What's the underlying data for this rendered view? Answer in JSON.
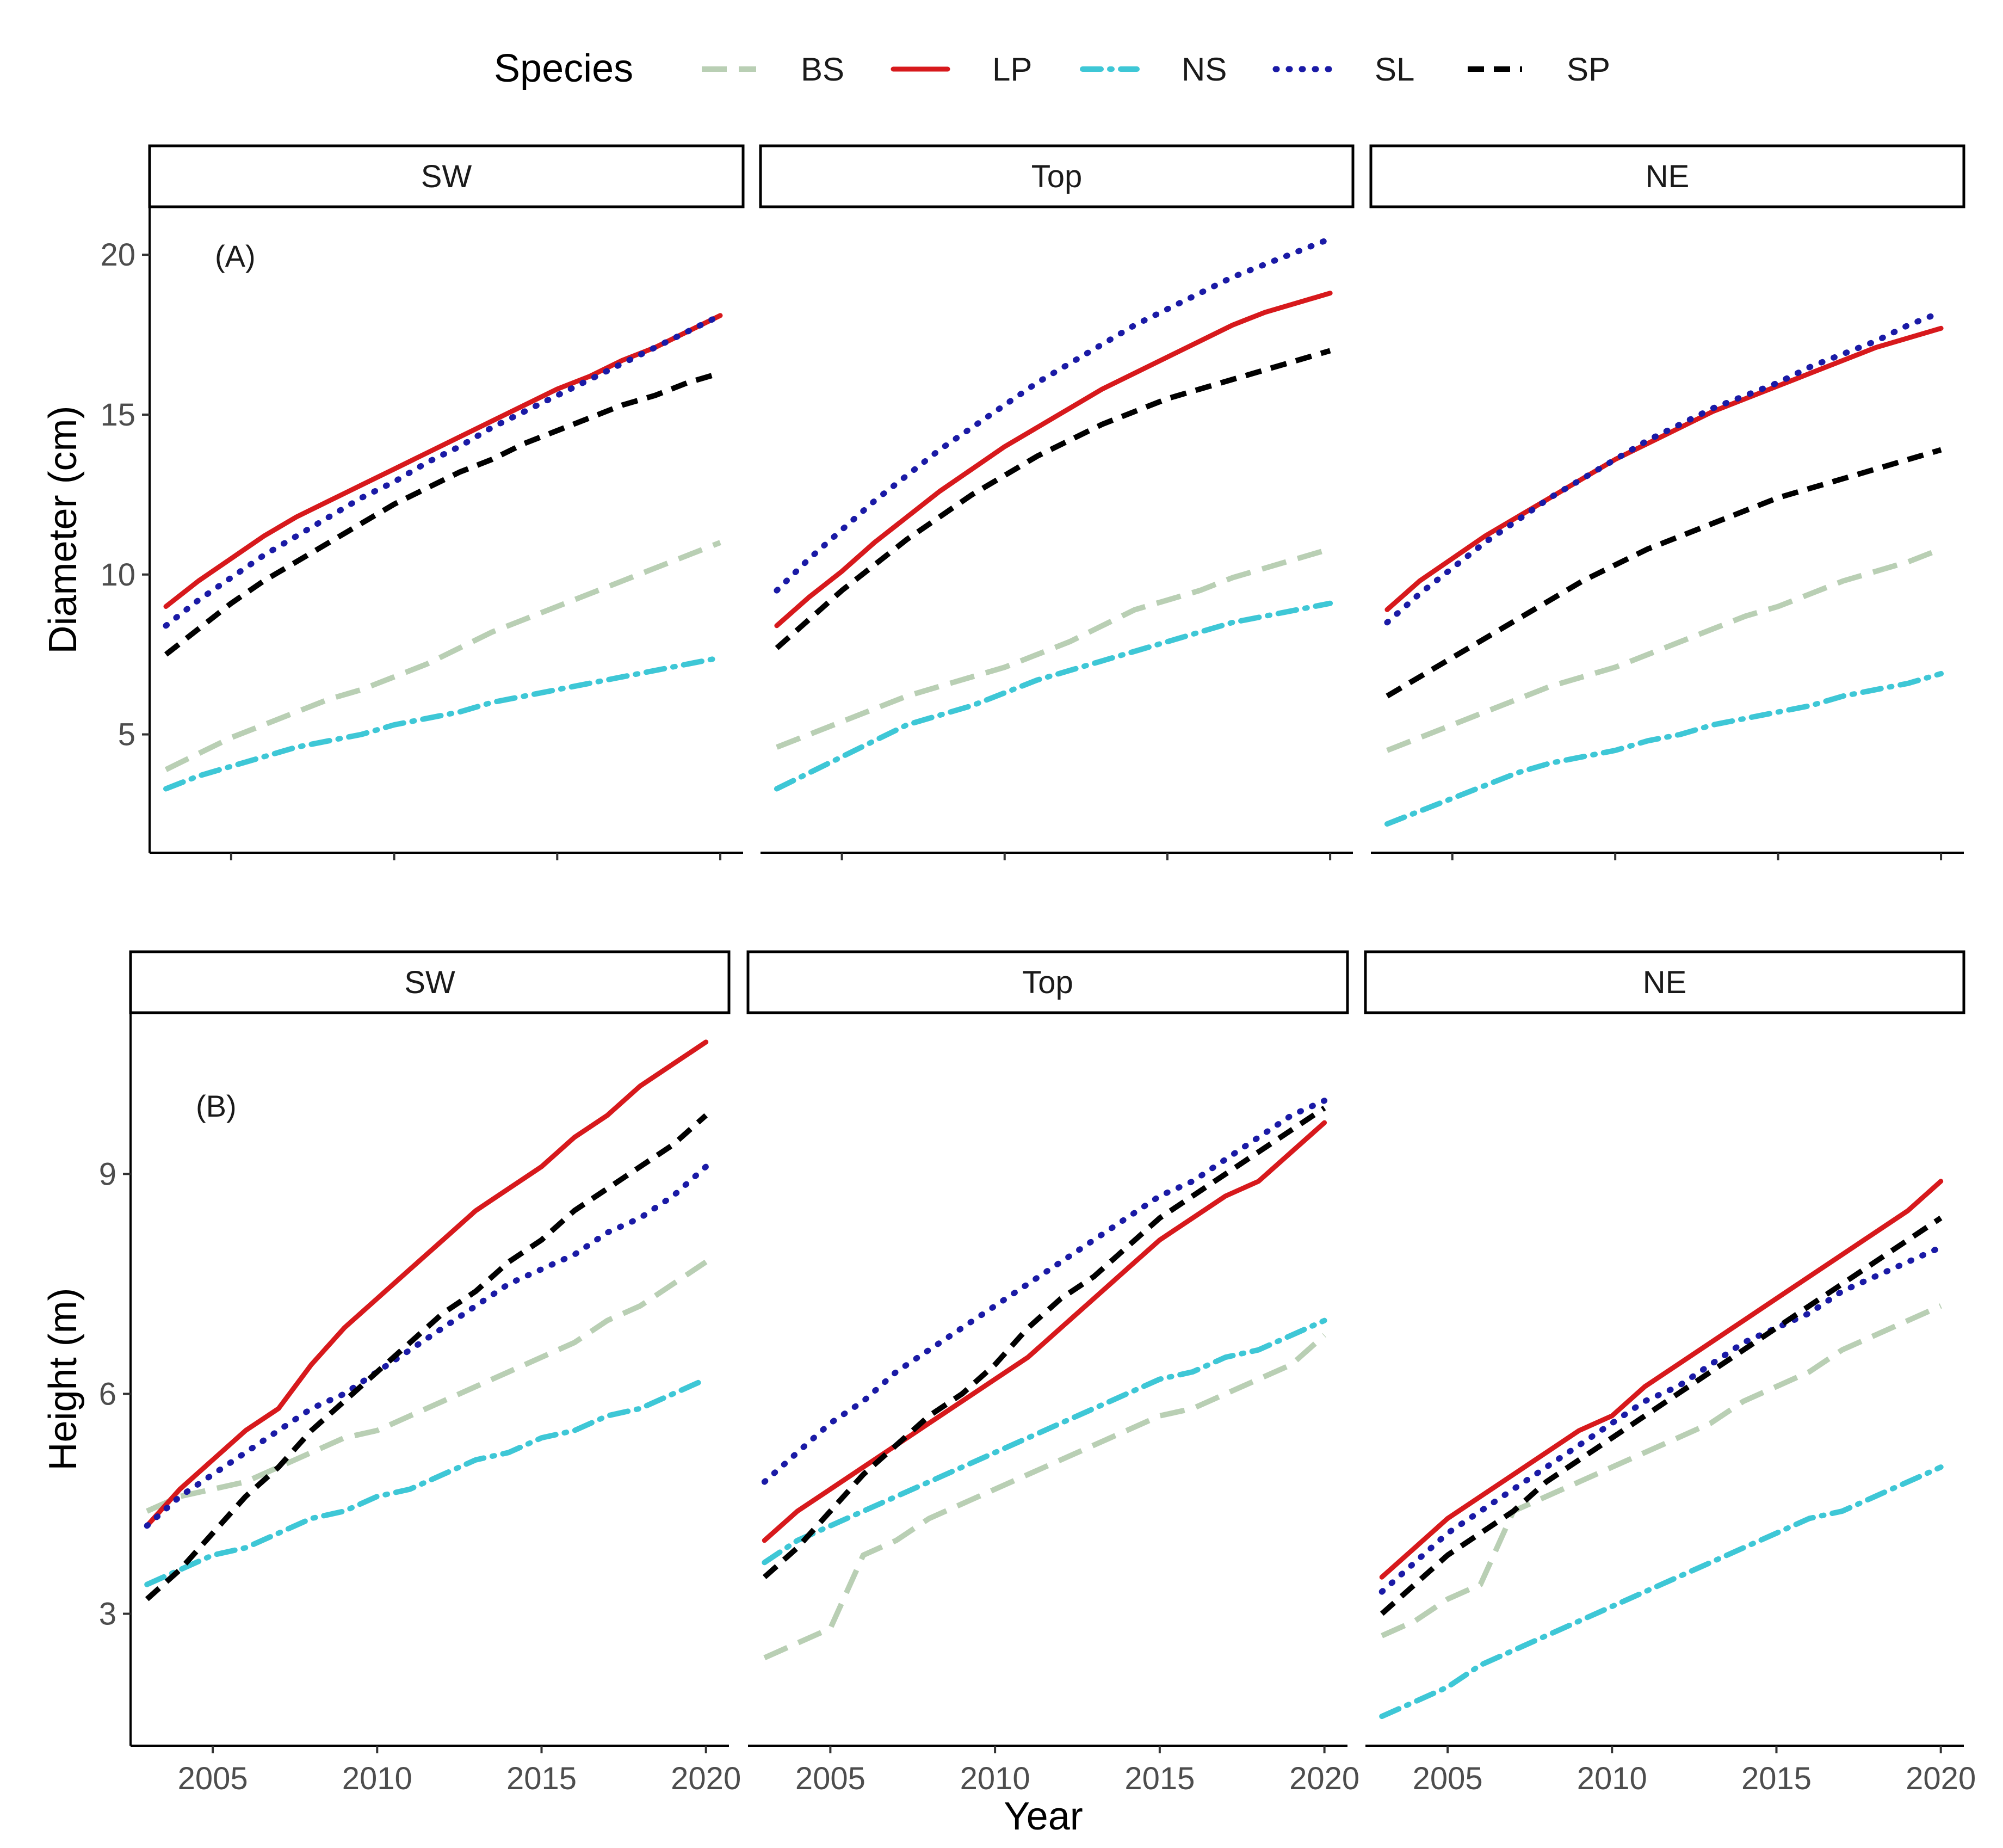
{
  "chart_data": {
    "type": "line",
    "legend": {
      "title": "Species",
      "position": "top",
      "entries": [
        {
          "key": "BS",
          "label": "BS",
          "color": "#b9cfb4",
          "dash": "longdash"
        },
        {
          "key": "LP",
          "label": "LP",
          "color": "#d7191c",
          "dash": "solid"
        },
        {
          "key": "NS",
          "label": "NS",
          "color": "#3ec7d6",
          "dash": "dashdot"
        },
        {
          "key": "SL",
          "label": "SL",
          "color": "#1a1aa6",
          "dash": "dotted"
        },
        {
          "key": "SP",
          "label": "SP",
          "color": "#000000",
          "dash": "dashed"
        }
      ]
    },
    "xlabel": "Year",
    "xlim": [
      2002.5,
      2020.7
    ],
    "xticks": [
      2005,
      2010,
      2015,
      2020
    ],
    "x": [
      2003,
      2004,
      2005,
      2006,
      2007,
      2008,
      2009,
      2010,
      2011,
      2012,
      2013,
      2014,
      2015,
      2016,
      2017,
      2018,
      2019,
      2020
    ],
    "rows": [
      {
        "annotation": "(A)",
        "ylabel": "Diameter (cm)",
        "ylim": [
          1.3,
          21.5
        ],
        "yticks": [
          5,
          10,
          15,
          20
        ],
        "facets": [
          {
            "strip": "SW",
            "series": [
              {
                "key": "BS",
                "values": [
                  3.9,
                  4.4,
                  4.9,
                  5.3,
                  5.7,
                  6.1,
                  6.4,
                  6.8,
                  7.2,
                  7.7,
                  8.2,
                  8.6,
                  9.0,
                  9.4,
                  9.8,
                  10.2,
                  10.6,
                  11.0
                ]
              },
              {
                "key": "LP",
                "values": [
                  9.0,
                  9.8,
                  10.5,
                  11.2,
                  11.8,
                  12.3,
                  12.8,
                  13.3,
                  13.8,
                  14.3,
                  14.8,
                  15.3,
                  15.8,
                  16.2,
                  16.7,
                  17.1,
                  17.6,
                  18.1
                ]
              },
              {
                "key": "NS",
                "values": [
                  3.3,
                  3.7,
                  4.0,
                  4.3,
                  4.6,
                  4.8,
                  5.0,
                  5.3,
                  5.5,
                  5.7,
                  6.0,
                  6.2,
                  6.4,
                  6.6,
                  6.8,
                  7.0,
                  7.2,
                  7.4
                ]
              },
              {
                "key": "SL",
                "values": [
                  8.4,
                  9.2,
                  9.9,
                  10.6,
                  11.2,
                  11.8,
                  12.4,
                  12.9,
                  13.5,
                  14.0,
                  14.6,
                  15.1,
                  15.6,
                  16.1,
                  16.6,
                  17.1,
                  17.6,
                  18.1
                ]
              },
              {
                "key": "SP",
                "values": [
                  7.5,
                  8.3,
                  9.1,
                  9.8,
                  10.4,
                  11.0,
                  11.6,
                  12.2,
                  12.7,
                  13.2,
                  13.6,
                  14.1,
                  14.5,
                  14.9,
                  15.3,
                  15.6,
                  16.0,
                  16.3
                ]
              }
            ]
          },
          {
            "strip": "Top",
            "series": [
              {
                "key": "BS",
                "values": [
                  4.6,
                  5.0,
                  5.4,
                  5.8,
                  6.2,
                  6.5,
                  6.8,
                  7.1,
                  7.5,
                  7.9,
                  8.4,
                  8.9,
                  9.2,
                  9.5,
                  9.9,
                  10.2,
                  10.5,
                  10.8
                ]
              },
              {
                "key": "LP",
                "values": [
                  8.4,
                  9.3,
                  10.1,
                  11.0,
                  11.8,
                  12.6,
                  13.3,
                  14.0,
                  14.6,
                  15.2,
                  15.8,
                  16.3,
                  16.8,
                  17.3,
                  17.8,
                  18.2,
                  18.5,
                  18.8
                ]
              },
              {
                "key": "NS",
                "values": [
                  3.3,
                  3.8,
                  4.3,
                  4.8,
                  5.3,
                  5.6,
                  5.9,
                  6.3,
                  6.7,
                  7.0,
                  7.3,
                  7.6,
                  7.9,
                  8.2,
                  8.5,
                  8.7,
                  8.9,
                  9.1
                ]
              },
              {
                "key": "SL",
                "values": [
                  9.5,
                  10.5,
                  11.4,
                  12.3,
                  13.1,
                  13.9,
                  14.6,
                  15.3,
                  16.0,
                  16.6,
                  17.2,
                  17.8,
                  18.3,
                  18.8,
                  19.3,
                  19.7,
                  20.1,
                  20.5
                ]
              },
              {
                "key": "SP",
                "values": [
                  7.7,
                  8.6,
                  9.5,
                  10.3,
                  11.1,
                  11.8,
                  12.5,
                  13.1,
                  13.7,
                  14.2,
                  14.7,
                  15.1,
                  15.5,
                  15.8,
                  16.1,
                  16.4,
                  16.7,
                  17.0
                ]
              }
            ]
          },
          {
            "strip": "NE",
            "series": [
              {
                "key": "BS",
                "values": [
                  4.5,
                  4.9,
                  5.3,
                  5.7,
                  6.1,
                  6.5,
                  6.8,
                  7.1,
                  7.5,
                  7.9,
                  8.3,
                  8.7,
                  9.0,
                  9.4,
                  9.8,
                  10.1,
                  10.4,
                  10.8
                ]
              },
              {
                "key": "LP",
                "values": [
                  8.9,
                  9.8,
                  10.5,
                  11.2,
                  11.8,
                  12.4,
                  13.0,
                  13.6,
                  14.1,
                  14.6,
                  15.1,
                  15.5,
                  15.9,
                  16.3,
                  16.7,
                  17.1,
                  17.4,
                  17.7
                ]
              },
              {
                "key": "NS",
                "values": [
                  2.2,
                  2.6,
                  3.0,
                  3.4,
                  3.8,
                  4.1,
                  4.3,
                  4.5,
                  4.8,
                  5.0,
                  5.3,
                  5.5,
                  5.7,
                  5.9,
                  6.2,
                  6.4,
                  6.6,
                  6.9
                ]
              },
              {
                "key": "SL",
                "values": [
                  8.5,
                  9.4,
                  10.2,
                  11.0,
                  11.7,
                  12.4,
                  13.0,
                  13.6,
                  14.2,
                  14.7,
                  15.2,
                  15.6,
                  16.0,
                  16.5,
                  16.9,
                  17.3,
                  17.8,
                  18.2
                ]
              },
              {
                "key": "SP",
                "values": [
                  6.2,
                  6.8,
                  7.4,
                  8.0,
                  8.6,
                  9.2,
                  9.8,
                  10.3,
                  10.8,
                  11.2,
                  11.6,
                  12.0,
                  12.4,
                  12.7,
                  13.0,
                  13.3,
                  13.6,
                  13.9
                ]
              }
            ]
          }
        ]
      },
      {
        "annotation": "(B)",
        "ylabel": "Height (m)",
        "ylim": [
          1.2,
          11.2
        ],
        "yticks": [
          3,
          6,
          9
        ],
        "facets": [
          {
            "strip": "SW",
            "series": [
              {
                "key": "BS",
                "values": [
                  4.4,
                  4.6,
                  4.7,
                  4.8,
                  5.0,
                  5.2,
                  5.4,
                  5.5,
                  5.7,
                  5.9,
                  6.1,
                  6.3,
                  6.5,
                  6.7,
                  7.0,
                  7.2,
                  7.5,
                  7.8
                ]
              },
              {
                "key": "LP",
                "values": [
                  4.2,
                  4.7,
                  5.1,
                  5.5,
                  5.8,
                  6.4,
                  6.9,
                  7.3,
                  7.7,
                  8.1,
                  8.5,
                  8.8,
                  9.1,
                  9.5,
                  9.8,
                  10.2,
                  10.5,
                  10.8
                ]
              },
              {
                "key": "NS",
                "values": [
                  3.4,
                  3.6,
                  3.8,
                  3.9,
                  4.1,
                  4.3,
                  4.4,
                  4.6,
                  4.7,
                  4.9,
                  5.1,
                  5.2,
                  5.4,
                  5.5,
                  5.7,
                  5.8,
                  6.0,
                  6.2
                ]
              },
              {
                "key": "SL",
                "values": [
                  4.2,
                  4.6,
                  4.9,
                  5.2,
                  5.5,
                  5.8,
                  6.0,
                  6.3,
                  6.6,
                  6.9,
                  7.2,
                  7.5,
                  7.7,
                  7.9,
                  8.2,
                  8.4,
                  8.7,
                  9.1
                ]
              },
              {
                "key": "SP",
                "values": [
                  3.2,
                  3.6,
                  4.1,
                  4.6,
                  5.0,
                  5.5,
                  5.9,
                  6.3,
                  6.7,
                  7.1,
                  7.4,
                  7.8,
                  8.1,
                  8.5,
                  8.8,
                  9.1,
                  9.4,
                  9.8
                ]
              }
            ]
          },
          {
            "strip": "Top",
            "series": [
              {
                "key": "BS",
                "values": [
                  2.4,
                  2.6,
                  2.8,
                  3.8,
                  4.0,
                  4.3,
                  4.5,
                  4.7,
                  4.9,
                  5.1,
                  5.3,
                  5.5,
                  5.7,
                  5.8,
                  6.0,
                  6.2,
                  6.4,
                  6.8
                ]
              },
              {
                "key": "LP",
                "values": [
                  4.0,
                  4.4,
                  4.7,
                  5.0,
                  5.3,
                  5.6,
                  5.9,
                  6.2,
                  6.5,
                  6.9,
                  7.3,
                  7.7,
                  8.1,
                  8.4,
                  8.7,
                  8.9,
                  9.3,
                  9.7
                ]
              },
              {
                "key": "NS",
                "values": [
                  3.7,
                  4.0,
                  4.2,
                  4.4,
                  4.6,
                  4.8,
                  5.0,
                  5.2,
                  5.4,
                  5.6,
                  5.8,
                  6.0,
                  6.2,
                  6.3,
                  6.5,
                  6.6,
                  6.8,
                  7.0
                ]
              },
              {
                "key": "SL",
                "values": [
                  4.8,
                  5.2,
                  5.6,
                  5.9,
                  6.3,
                  6.6,
                  6.9,
                  7.2,
                  7.5,
                  7.8,
                  8.1,
                  8.4,
                  8.7,
                  8.9,
                  9.2,
                  9.5,
                  9.8,
                  10.0
                ]
              },
              {
                "key": "SP",
                "values": [
                  3.5,
                  3.9,
                  4.4,
                  4.9,
                  5.3,
                  5.7,
                  6.0,
                  6.4,
                  6.9,
                  7.3,
                  7.6,
                  8.0,
                  8.4,
                  8.7,
                  9.0,
                  9.3,
                  9.6,
                  9.9
                ]
              }
            ]
          },
          {
            "strip": "NE",
            "series": [
              {
                "key": "BS",
                "values": [
                  2.7,
                  2.9,
                  3.2,
                  3.4,
                  4.4,
                  4.6,
                  4.8,
                  5.0,
                  5.2,
                  5.4,
                  5.6,
                  5.9,
                  6.1,
                  6.3,
                  6.6,
                  6.8,
                  7.0,
                  7.2
                ]
              },
              {
                "key": "LP",
                "values": [
                  3.5,
                  3.9,
                  4.3,
                  4.6,
                  4.9,
                  5.2,
                  5.5,
                  5.7,
                  6.1,
                  6.4,
                  6.7,
                  7.0,
                  7.3,
                  7.6,
                  7.9,
                  8.2,
                  8.5,
                  8.9
                ]
              },
              {
                "key": "NS",
                "values": [
                  1.6,
                  1.8,
                  2.0,
                  2.3,
                  2.5,
                  2.7,
                  2.9,
                  3.1,
                  3.3,
                  3.5,
                  3.7,
                  3.9,
                  4.1,
                  4.3,
                  4.4,
                  4.6,
                  4.8,
                  5.0
                ]
              },
              {
                "key": "SL",
                "values": [
                  3.3,
                  3.7,
                  4.1,
                  4.4,
                  4.7,
                  5.0,
                  5.3,
                  5.6,
                  5.9,
                  6.1,
                  6.4,
                  6.7,
                  6.9,
                  7.1,
                  7.4,
                  7.6,
                  7.8,
                  8.0
                ]
              },
              {
                "key": "SP",
                "values": [
                  3.0,
                  3.4,
                  3.8,
                  4.1,
                  4.4,
                  4.8,
                  5.1,
                  5.4,
                  5.7,
                  6.0,
                  6.3,
                  6.6,
                  6.9,
                  7.2,
                  7.5,
                  7.8,
                  8.1,
                  8.4
                ]
              }
            ]
          }
        ]
      }
    ]
  }
}
